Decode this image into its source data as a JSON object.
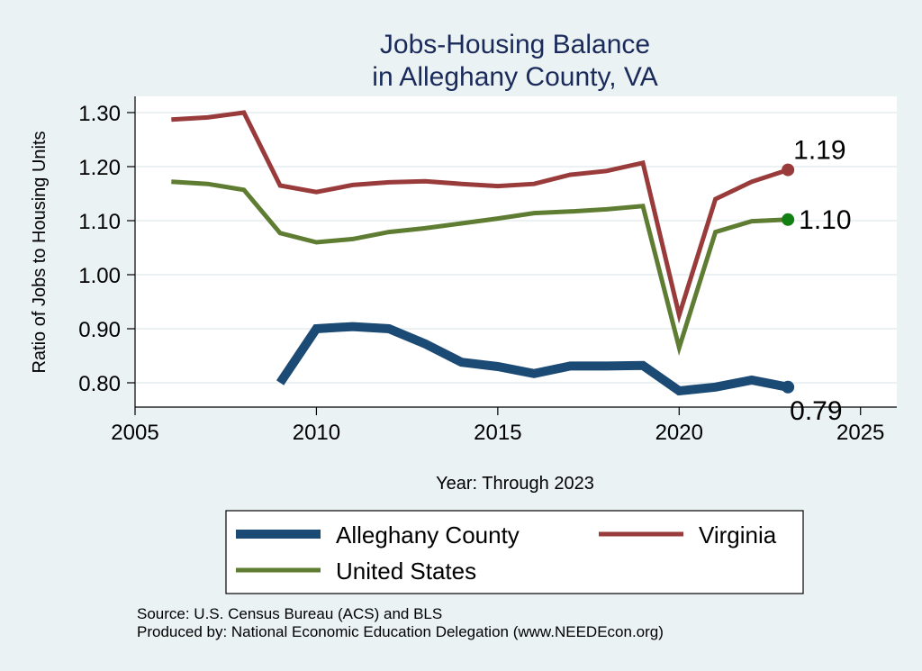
{
  "chart_data": {
    "type": "line",
    "title": [
      "Jobs-Housing Balance",
      "in Alleghany County, VA"
    ],
    "xlabel": "Year: Through 2023",
    "ylabel": "Ratio of Jobs to Housing Units",
    "xlim": [
      2005,
      2026
    ],
    "ylim": [
      0.755,
      1.33
    ],
    "xticks": [
      2005,
      2010,
      2015,
      2020,
      2025
    ],
    "yticks": [
      0.8,
      0.9,
      1.0,
      1.1,
      1.2,
      1.3
    ],
    "ytick_labels": [
      "0.80",
      "0.90",
      "1.00",
      "1.10",
      "1.20",
      "1.30"
    ],
    "grid": true,
    "series": [
      {
        "name": "Alleghany County",
        "color": "#1b4a75",
        "x": [
          2009,
          2010,
          2011,
          2012,
          2013,
          2014,
          2015,
          2016,
          2017,
          2018,
          2019,
          2020,
          2021,
          2022,
          2023
        ],
        "values": [
          0.8,
          0.9,
          0.904,
          0.9,
          0.872,
          0.838,
          0.83,
          0.817,
          0.831,
          0.831,
          0.832,
          0.785,
          0.792,
          0.805,
          0.792
        ],
        "end_label": "0.79"
      },
      {
        "name": "Virginia",
        "color": "#9a3b3b",
        "x": [
          2006,
          2007,
          2008,
          2009,
          2010,
          2011,
          2012,
          2013,
          2014,
          2015,
          2016,
          2017,
          2018,
          2019,
          2020,
          2021,
          2022,
          2023
        ],
        "values": [
          1.287,
          1.291,
          1.3,
          1.165,
          1.153,
          1.166,
          1.171,
          1.173,
          1.168,
          1.164,
          1.168,
          1.185,
          1.192,
          1.207,
          0.925,
          1.14,
          1.172,
          1.194
        ],
        "end_label": "1.19"
      },
      {
        "name": "United States",
        "color": "#5f7d32",
        "x": [
          2006,
          2007,
          2008,
          2009,
          2010,
          2011,
          2012,
          2013,
          2014,
          2015,
          2016,
          2017,
          2018,
          2019,
          2020,
          2021,
          2022,
          2023
        ],
        "values": [
          1.172,
          1.168,
          1.157,
          1.077,
          1.06,
          1.066,
          1.079,
          1.086,
          1.095,
          1.104,
          1.114,
          1.117,
          1.121,
          1.127,
          0.865,
          1.079,
          1.099,
          1.102
        ],
        "end_label": "1.10"
      }
    ],
    "legend_position": "bottom",
    "end_marker_colors": [
      "#1b4a75",
      "#9a3b3b",
      "#128012"
    ]
  },
  "notes": {
    "source": "Source: U.S. Census Bureau (ACS) and BLS",
    "producer": "Produced by: National Economic Education Delegation (www.NEEDEcon.org)"
  }
}
